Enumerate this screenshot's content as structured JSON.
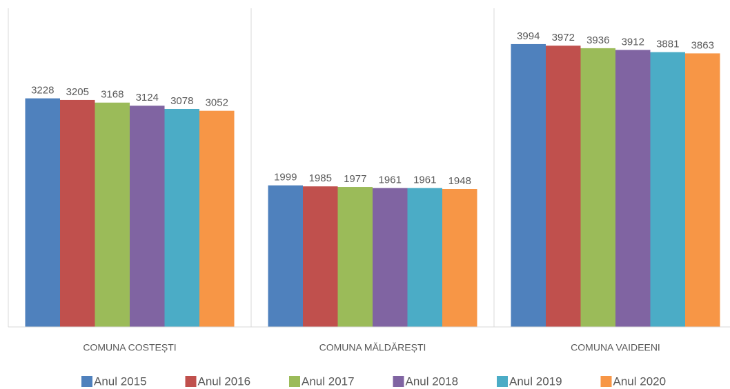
{
  "chart_data": {
    "type": "bar",
    "categories": [
      "COMUNA COSTEȘTI",
      "COMUNA MĂLDĂREȘTI",
      "COMUNA VAIDEENI"
    ],
    "series": [
      {
        "name": "Anul 2015",
        "color": "#4f81bd",
        "values": [
          3228,
          1999,
          3994
        ]
      },
      {
        "name": "Anul 2016",
        "color": "#c0504d",
        "values": [
          3205,
          1985,
          3972
        ]
      },
      {
        "name": "Anul 2017",
        "color": "#9bbb59",
        "values": [
          3168,
          1977,
          3936
        ]
      },
      {
        "name": "Anul 2018",
        "color": "#8064a2",
        "values": [
          3124,
          1961,
          3912
        ]
      },
      {
        "name": "Anul 2019",
        "color": "#4bacc6",
        "values": [
          3078,
          1961,
          3881
        ]
      },
      {
        "name": "Anul 2020",
        "color": "#f79646",
        "values": [
          3052,
          1948,
          3863
        ]
      }
    ],
    "ylim": [
      0,
      4500
    ],
    "legend": "bottom"
  }
}
